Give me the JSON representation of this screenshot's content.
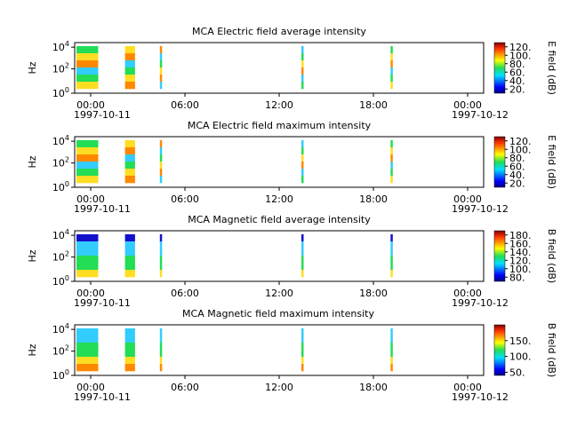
{
  "figure": {
    "x_tick_labels": [
      "00:00",
      "06:00",
      "12:00",
      "18:00",
      "00:00"
    ],
    "x_date_labels": [
      "1997-10-11",
      "1997-10-12"
    ]
  },
  "chart_data": [
    {
      "type": "heatmap",
      "title": "MCA  Electric field average intensity",
      "ylabel": "Hz",
      "yscale": "log",
      "ylim": [
        1,
        30000
      ],
      "y_tick_labels": [
        "10^0",
        "10^2",
        "10^4"
      ],
      "xlim": [
        "1997-10-11T00:00",
        "1997-10-12T00:00"
      ],
      "colorbar": {
        "label": "E field (dB)",
        "range": [
          10,
          130
        ],
        "ticks": [
          "20.",
          "40.",
          "60.",
          "80.",
          "100.",
          "120."
        ]
      },
      "data_intervals": [
        [
          "00:00",
          "01:30"
        ],
        [
          "03:05",
          "03:50"
        ],
        [
          "05:18",
          "05:25"
        ],
        [
          "14:18",
          "14:25"
        ],
        [
          "19:58",
          "20:13"
        ]
      ],
      "dominant_colors": [
        "#22dd55",
        "#ffdd22",
        "#ff8800",
        "#33ccff"
      ]
    },
    {
      "type": "heatmap",
      "title": "MCA  Electric field maximum intensity",
      "ylabel": "Hz",
      "yscale": "log",
      "ylim": [
        1,
        30000
      ],
      "y_tick_labels": [
        "10^0",
        "10^2",
        "10^4"
      ],
      "xlim": [
        "1997-10-11T00:00",
        "1997-10-12T00:00"
      ],
      "colorbar": {
        "label": "E field (dB)",
        "range": [
          10,
          130
        ],
        "ticks": [
          "20.",
          "40.",
          "60.",
          "80.",
          "100.",
          "120."
        ]
      },
      "data_intervals": [
        [
          "00:00",
          "01:30"
        ],
        [
          "03:05",
          "03:50"
        ],
        [
          "05:18",
          "05:25"
        ],
        [
          "14:18",
          "14:25"
        ],
        [
          "19:58",
          "20:13"
        ]
      ],
      "dominant_colors": [
        "#22dd55",
        "#ffdd22",
        "#ff8800",
        "#33ccff"
      ]
    },
    {
      "type": "heatmap",
      "title": "MCA  Magnetic field average intensity",
      "ylabel": "Hz",
      "yscale": "log",
      "ylim": [
        1,
        30000
      ],
      "y_tick_labels": [
        "10^0",
        "10^2",
        "10^4"
      ],
      "xlim": [
        "1997-10-11T00:00",
        "1997-10-12T00:00"
      ],
      "colorbar": {
        "label": "B field (dB)",
        "range": [
          70,
          190
        ],
        "ticks": [
          "80.",
          "100.",
          "120.",
          "140.",
          "160.",
          "180."
        ]
      },
      "data_intervals": [
        [
          "00:00",
          "01:30"
        ],
        [
          "03:05",
          "03:50"
        ],
        [
          "05:18",
          "05:25"
        ],
        [
          "14:18",
          "14:25"
        ],
        [
          "19:58",
          "20:13"
        ]
      ],
      "dominant_colors": [
        "#1111cc",
        "#33ccff",
        "#22dd55",
        "#ffdd22"
      ]
    },
    {
      "type": "heatmap",
      "title": "MCA  Magnetic field maximum intensity",
      "ylabel": "Hz",
      "yscale": "log",
      "ylim": [
        1,
        30000
      ],
      "y_tick_labels": [
        "10^0",
        "10^2",
        "10^4"
      ],
      "xlim": [
        "1997-10-11T00:00",
        "1997-10-12T00:00"
      ],
      "colorbar": {
        "label": "B field (dB)",
        "range": [
          40,
          200
        ],
        "ticks": [
          "50.",
          "100.",
          "150."
        ]
      },
      "data_intervals": [
        [
          "00:00",
          "01:30"
        ],
        [
          "03:05",
          "03:50"
        ],
        [
          "05:18",
          "05:25"
        ],
        [
          "14:18",
          "14:25"
        ],
        [
          "19:58",
          "20:13"
        ]
      ],
      "dominant_colors": [
        "#33ccff",
        "#22dd55",
        "#ffdd22",
        "#ff8800"
      ]
    }
  ]
}
